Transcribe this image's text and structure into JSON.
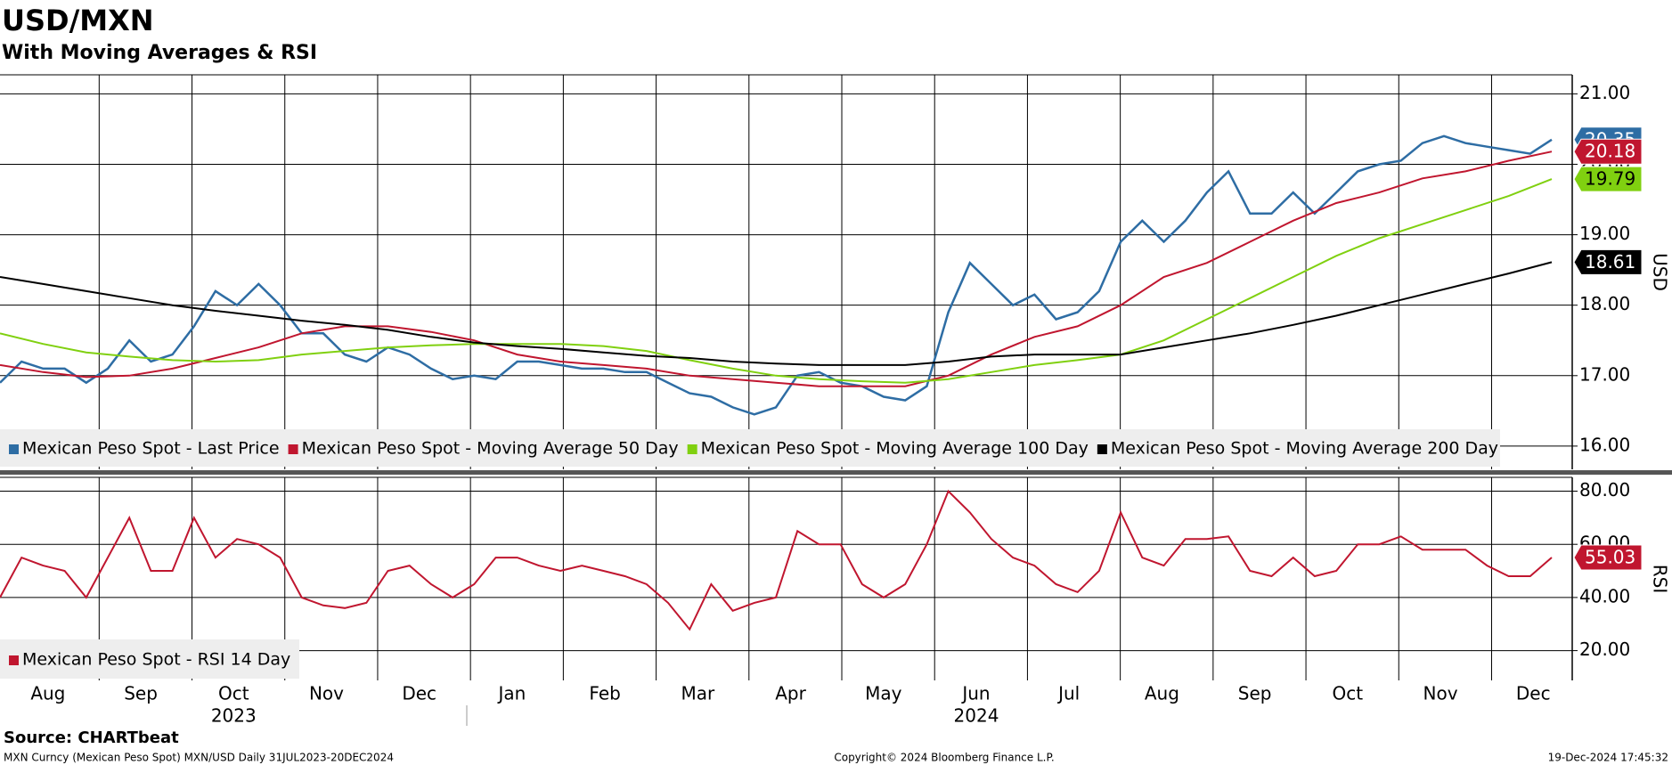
{
  "title": "USD/MXN",
  "subtitle": "With Moving Averages & RSI",
  "source": "Source: CHARTbeat",
  "footer": {
    "left": "MXN Curncy (Mexican Peso Spot) MXN/USD  Daily 31JUL2023-20DEC2024",
    "center": "Copyright© 2024 Bloomberg Finance L.P.",
    "right": "19-Dec-2024 17:45:32"
  },
  "categories": [
    "Aug",
    "Sep",
    "Oct",
    "Nov",
    "Dec",
    "Jan",
    "Feb",
    "Mar",
    "Apr",
    "May",
    "Jun",
    "Jul",
    "Aug",
    "Sep",
    "Oct",
    "Nov",
    "Dec"
  ],
  "years": [
    "2023",
    "2024"
  ],
  "chart_data": [
    {
      "type": "line",
      "y_label": "USD",
      "ylim": [
        15.67,
        21.27
      ],
      "yticks": [
        {
          "value": 16,
          "label": "16.00"
        },
        {
          "value": 17,
          "label": "17.00"
        },
        {
          "value": 18,
          "label": "18.00"
        },
        {
          "value": 19,
          "label": "19.00"
        },
        {
          "value": 20,
          "label": "20.00"
        },
        {
          "value": 21,
          "label": "21.00"
        }
      ],
      "grid": true,
      "series": [
        {
          "name": "Mexican Peso Spot - Last Price",
          "color": "#2e6da4",
          "values": [
            16.9,
            17.2,
            17.1,
            17.1,
            16.9,
            17.1,
            17.5,
            17.2,
            17.3,
            17.7,
            18.2,
            18.0,
            18.3,
            18.0,
            17.6,
            17.6,
            17.3,
            17.2,
            17.4,
            17.3,
            17.1,
            16.95,
            17.0,
            16.95,
            17.2,
            17.2,
            17.15,
            17.1,
            17.1,
            17.05,
            17.05,
            16.9,
            16.75,
            16.7,
            16.55,
            16.45,
            16.55,
            17.0,
            17.05,
            16.9,
            16.85,
            16.7,
            16.65,
            16.85,
            17.9,
            18.6,
            18.3,
            18.0,
            18.15,
            17.8,
            17.9,
            18.2,
            18.9,
            19.2,
            18.9,
            19.2,
            19.6,
            19.9,
            19.3,
            19.3,
            19.6,
            19.3,
            19.6,
            19.9,
            20.0,
            20.05,
            20.3,
            20.4,
            20.3,
            20.25,
            20.2,
            20.15,
            20.35
          ]
        },
        {
          "name": "Mexican Peso Spot - Moving Average 50 Day",
          "color": "#c0162f",
          "values": [
            17.15,
            17.05,
            16.98,
            17.0,
            17.1,
            17.25,
            17.4,
            17.6,
            17.7,
            17.7,
            17.62,
            17.5,
            17.3,
            17.2,
            17.15,
            17.1,
            17.0,
            16.95,
            16.9,
            16.85,
            16.85,
            16.85,
            17.0,
            17.3,
            17.55,
            17.7,
            18.0,
            18.4,
            18.6,
            18.9,
            19.2,
            19.45,
            19.6,
            19.8,
            19.9,
            20.05,
            20.18
          ]
        },
        {
          "name": "Mexican Peso Spot - Moving Average 100 Day",
          "color": "#80d010",
          "values": [
            17.6,
            17.45,
            17.33,
            17.27,
            17.22,
            17.2,
            17.22,
            17.3,
            17.35,
            17.4,
            17.43,
            17.45,
            17.45,
            17.45,
            17.42,
            17.35,
            17.22,
            17.1,
            17.0,
            16.95,
            16.92,
            16.9,
            16.95,
            17.05,
            17.15,
            17.22,
            17.3,
            17.5,
            17.8,
            18.1,
            18.4,
            18.7,
            18.95,
            19.15,
            19.35,
            19.55,
            19.79
          ]
        },
        {
          "name": "Mexican Peso Spot - Moving Average 200 Day",
          "color": "#000000",
          "values": [
            18.4,
            18.3,
            18.2,
            18.1,
            18.0,
            17.92,
            17.85,
            17.78,
            17.72,
            17.65,
            17.55,
            17.47,
            17.42,
            17.38,
            17.33,
            17.28,
            17.25,
            17.2,
            17.17,
            17.15,
            17.15,
            17.15,
            17.2,
            17.27,
            17.3,
            17.3,
            17.3,
            17.4,
            17.5,
            17.6,
            17.72,
            17.85,
            18.0,
            18.15,
            18.3,
            18.45,
            18.61
          ]
        }
      ]
    },
    {
      "type": "line",
      "y_label": "RSI",
      "ylim": [
        8.8,
        85.2
      ],
      "yticks": [
        {
          "value": 20,
          "label": "20.00"
        },
        {
          "value": 40,
          "label": "40.00"
        },
        {
          "value": 60,
          "label": "60.00"
        },
        {
          "value": 80,
          "label": "80.00"
        }
      ],
      "grid": true,
      "series": [
        {
          "name": "Mexican Peso Spot - RSI 14 Day",
          "color": "#c0162f",
          "values": [
            40,
            55,
            52,
            50,
            40,
            55,
            70,
            50,
            50,
            70,
            55,
            62,
            60,
            55,
            40,
            37,
            36,
            38,
            50,
            52,
            45,
            40,
            45,
            55,
            55,
            52,
            50,
            52,
            50,
            48,
            45,
            38,
            28,
            45,
            35,
            38,
            40,
            65,
            60,
            60,
            45,
            40,
            45,
            60,
            80,
            72,
            62,
            55,
            52,
            45,
            42,
            50,
            72,
            55,
            52,
            62,
            62,
            63,
            50,
            48,
            55,
            48,
            50,
            60,
            60,
            63,
            58,
            58,
            58,
            52,
            48,
            48,
            55.03
          ]
        }
      ]
    }
  ]
}
